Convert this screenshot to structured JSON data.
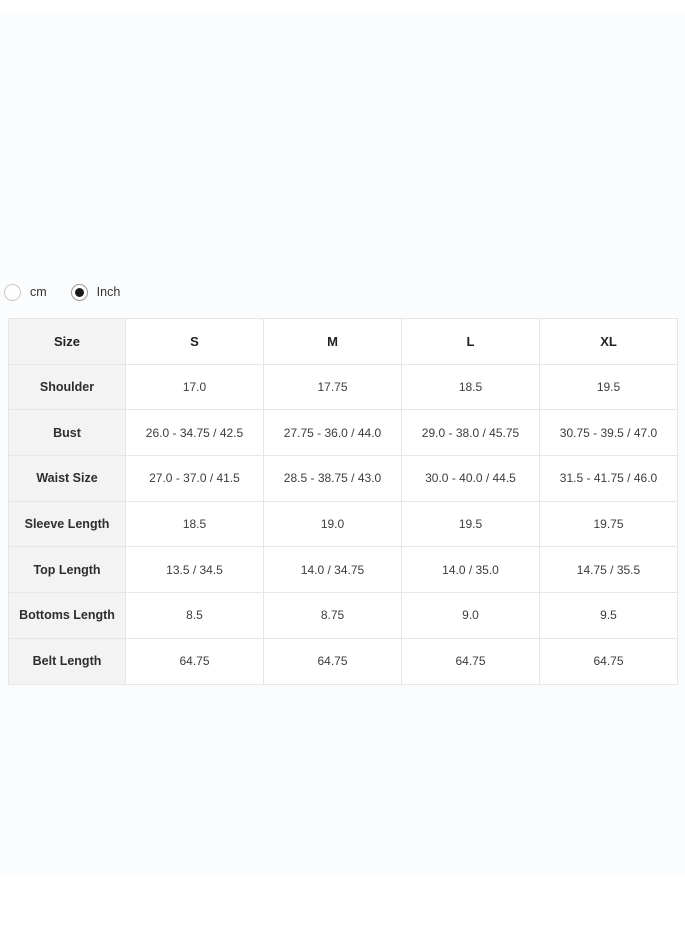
{
  "unit_toggle": {
    "options": [
      {
        "label": "cm",
        "selected": false
      },
      {
        "label": "Inch",
        "selected": true
      }
    ]
  },
  "size_table": {
    "header": {
      "c0": "Size",
      "c1": "S",
      "c2": "M",
      "c3": "L",
      "c4": "XL"
    },
    "rows": [
      {
        "label": "Shoulder",
        "values": [
          "17.0",
          "17.75",
          "18.5",
          "19.5"
        ]
      },
      {
        "label": "Bust",
        "values": [
          "26.0 - 34.75 / 42.5",
          "27.75 - 36.0 / 44.0",
          "29.0 - 38.0 / 45.75",
          "30.75 - 39.5 / 47.0"
        ]
      },
      {
        "label": "Waist Size",
        "values": [
          "27.0 - 37.0 / 41.5",
          "28.5 - 38.75 / 43.0",
          "30.0 - 40.0 / 44.5",
          "31.5 - 41.75 / 46.0"
        ]
      },
      {
        "label": "Sleeve Length",
        "values": [
          "18.5",
          "19.0",
          "19.5",
          "19.75"
        ]
      },
      {
        "label": "Top Length",
        "values": [
          "13.5 / 34.5",
          "14.0 / 34.75",
          "14.0 / 35.0",
          "14.75 / 35.5"
        ]
      },
      {
        "label": "Bottoms Length",
        "values": [
          "8.5",
          "8.75",
          "9.0",
          "9.5"
        ]
      },
      {
        "label": "Belt Length",
        "values": [
          "64.75",
          "64.75",
          "64.75",
          "64.75"
        ]
      }
    ]
  },
  "colors": {
    "label_column_bg": "#f3f3f3",
    "table_border": "#e6e6e6",
    "radio_dot": "#1a1a1a",
    "text": "#333333"
  }
}
